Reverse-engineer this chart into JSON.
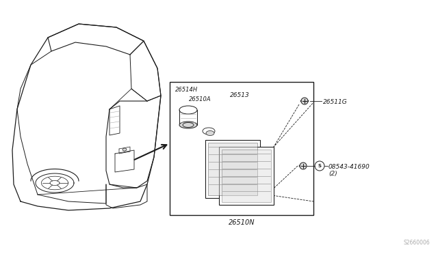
{
  "bg_color": "#ffffff",
  "line_color": "#1a1a1a",
  "gray_color": "#aaaaaa",
  "light_gray": "#d8d8d8",
  "mid_gray": "#888888",
  "fig_width": 6.4,
  "fig_height": 3.72,
  "dpi": 100,
  "footer_text": "S2660006",
  "label_26514H": "26514H",
  "label_26510A": "26510A",
  "label_26513": "26513",
  "label_26510N": "26510N",
  "label_26511G": "26511G",
  "label_screw": "08543-41690",
  "label_qty": "(2)"
}
